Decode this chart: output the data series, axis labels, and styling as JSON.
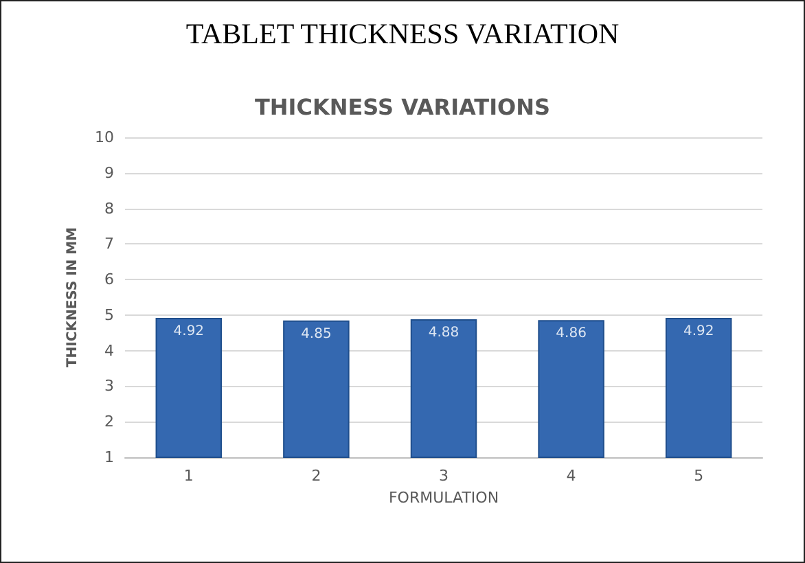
{
  "chart_data": {
    "type": "bar",
    "title": "TABLET THICKNESS VARIATION",
    "subtitle": "THICKNESS VARIATIONS",
    "xlabel": "FORMULATION",
    "ylabel": "THICKNESS IN MM",
    "categories": [
      "1",
      "2",
      "3",
      "4",
      "5"
    ],
    "values": [
      4.92,
      4.85,
      4.88,
      4.86,
      4.92
    ],
    "color": "#3468b0",
    "data_labels": true,
    "ylim": [
      1,
      10
    ],
    "yticks": [
      1,
      2,
      3,
      4,
      5,
      6,
      7,
      8,
      9,
      10
    ],
    "grid": "y"
  }
}
